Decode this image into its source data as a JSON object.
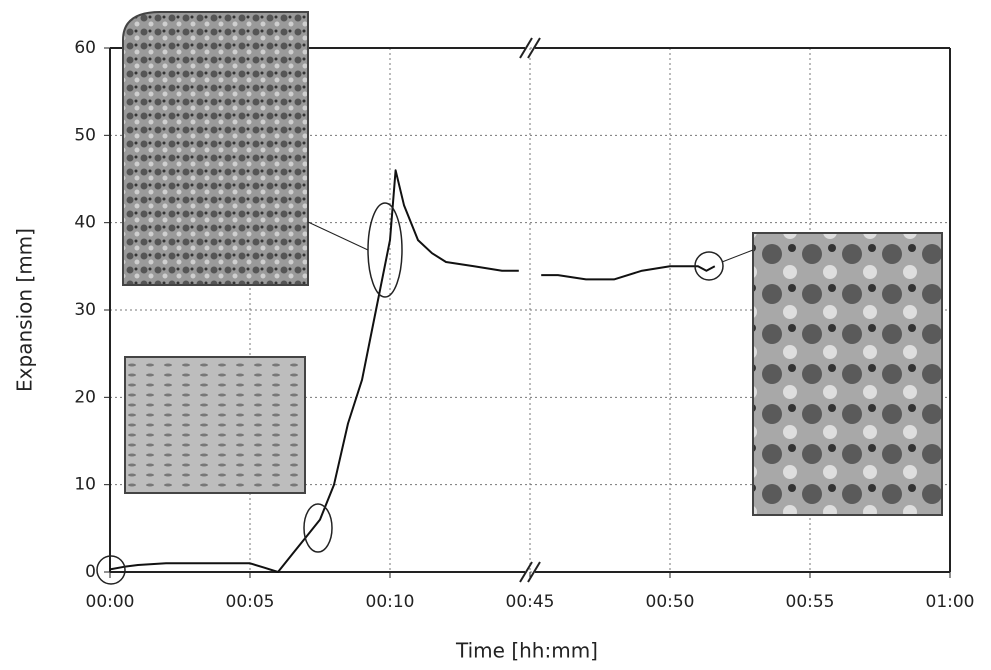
{
  "chart_data": {
    "type": "line",
    "x_label": "Time [hh:mm]",
    "y_label": "Expansion [mm]",
    "xlim": [
      0,
      60
    ],
    "xbreak": [
      15,
      45
    ],
    "xticks": [
      {
        "value": 0,
        "label": "00:00"
      },
      {
        "value": 5,
        "label": "00:05"
      },
      {
        "value": 10,
        "label": "00:10"
      },
      {
        "value": 45,
        "label": "00:45"
      },
      {
        "value": 50,
        "label": "00:50"
      },
      {
        "value": 55,
        "label": "00:55"
      },
      {
        "value": 60,
        "label": "01:00"
      }
    ],
    "ylim": [
      0,
      60
    ],
    "yticks": [
      0,
      10,
      20,
      30,
      40,
      50,
      60
    ],
    "grid": true,
    "color": "#111111",
    "x": [
      0,
      0.5,
      1,
      2,
      3,
      4,
      5,
      5.5,
      6,
      6.5,
      7,
      7.5,
      8,
      8.5,
      9,
      9.5,
      10,
      10.2,
      10.5,
      11,
      11.5,
      12,
      13,
      14,
      14.6,
      null,
      45.4,
      46,
      47,
      48,
      49,
      50,
      50.5,
      51,
      51.3,
      51.6
    ],
    "values": [
      0.3,
      0.6,
      0.8,
      1,
      1,
      1,
      1,
      0.5,
      0,
      2,
      4,
      6,
      10,
      17,
      22,
      30,
      38,
      46,
      42,
      38,
      36.5,
      35.5,
      35,
      34.5,
      34.5,
      null,
      34,
      34,
      33.5,
      33.5,
      34.5,
      35,
      35,
      35,
      34.5,
      35
    ]
  }
}
